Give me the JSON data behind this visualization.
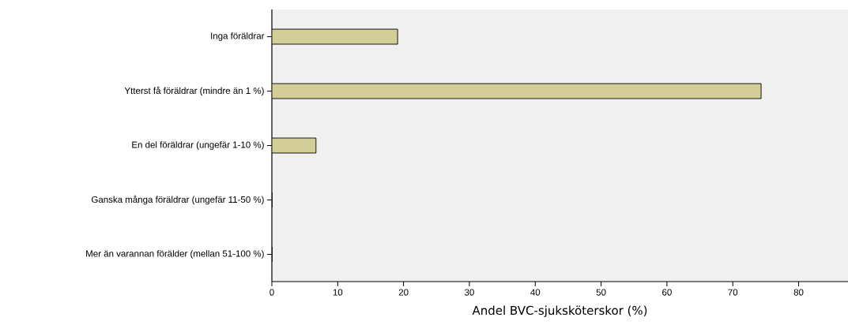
{
  "chart_data": {
    "type": "bar",
    "orientation": "horizontal",
    "xlabel": "Andel BVC-sjuksköterskor (%)",
    "categories": [
      "Inga föräldrar",
      "Ytterst få föräldrar (mindre än 1 %)",
      "En del föräldrar (ungefär 1-10 %)",
      "Ganska många föräldrar (ungefär 11-50 %)",
      "Mer än varannan förälder (mellan 51-100 %)"
    ],
    "values": [
      19.1,
      74.3,
      6.7,
      0,
      0
    ],
    "color": "#d3ce97",
    "xlim": [
      0,
      87.5
    ],
    "xticks": [
      0,
      10,
      20,
      30,
      40,
      50,
      60,
      70,
      80
    ]
  }
}
